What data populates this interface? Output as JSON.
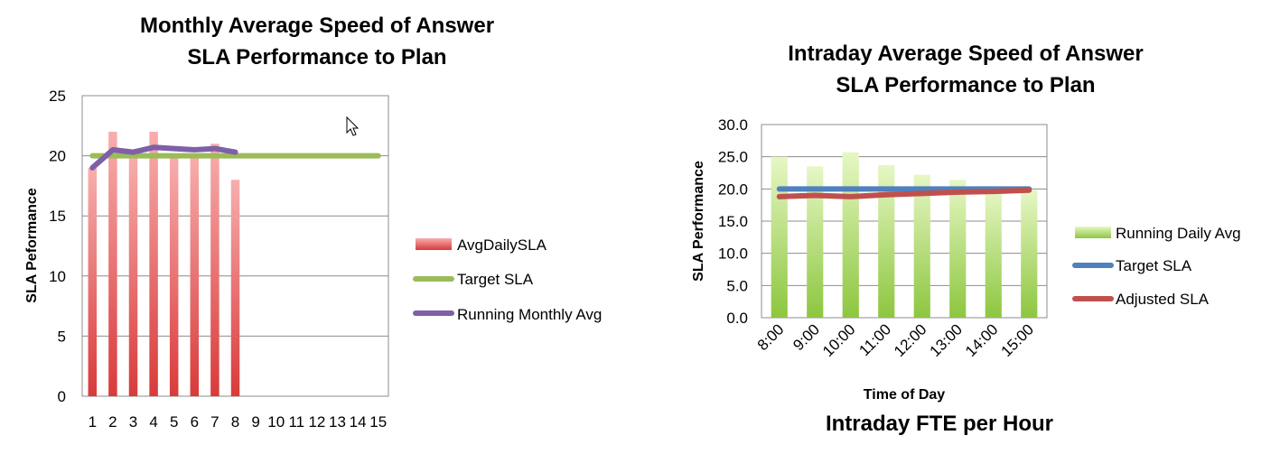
{
  "chart_data": [
    {
      "type": "bar",
      "title": "Monthly Average Speed of Answer SLA Performance to Plan",
      "title_lines": [
        "Monthly Average Speed of Answer",
        "SLA Performance to Plan"
      ],
      "xlabel": "",
      "ylabel": "SLA Peformance",
      "categories": [
        "1",
        "2",
        "3",
        "4",
        "5",
        "6",
        "7",
        "8",
        "9",
        "10",
        "11",
        "12",
        "13",
        "14",
        "15"
      ],
      "ylim": [
        0,
        25
      ],
      "yticks": [
        "0",
        "5",
        "10",
        "15",
        "20",
        "25"
      ],
      "series": [
        {
          "name": "AvgDailySLA",
          "kind": "bar",
          "color": "#e04848",
          "values": [
            19,
            22,
            20,
            22,
            20,
            20,
            21,
            18,
            null,
            null,
            null,
            null,
            null,
            null,
            null
          ]
        },
        {
          "name": "Target SLA",
          "kind": "line",
          "color": "#9bbb59",
          "values": [
            20,
            20,
            20,
            20,
            20,
            20,
            20,
            20,
            20,
            20,
            20,
            20,
            20,
            20,
            20
          ]
        },
        {
          "name": "Running Monthly Avg",
          "kind": "line",
          "color": "#7f5fa8",
          "values": [
            19,
            20.5,
            20.3,
            20.7,
            20.6,
            20.5,
            20.6,
            20.3,
            null,
            null,
            null,
            null,
            null,
            null,
            null
          ]
        }
      ],
      "legend": "right"
    },
    {
      "type": "bar",
      "title": "Intraday Average Speed of Answer SLA Performance to Plan",
      "title_lines": [
        "Intraday Average Speed of Answer",
        "SLA Performance to Plan"
      ],
      "xlabel": "Time of Day",
      "ylabel": "SLA Performance",
      "caption": "Intraday FTE per Hour",
      "categories": [
        "8:00",
        "9:00",
        "10:00",
        "11:00",
        "12:00",
        "13:00",
        "14:00",
        "15:00"
      ],
      "ylim": [
        0,
        30
      ],
      "yticks": [
        "0.0",
        "5.0",
        "10.0",
        "15.0",
        "20.0",
        "25.0",
        "30.0"
      ],
      "series": [
        {
          "name": "Running Daily Avg",
          "kind": "bar",
          "color": "#92c83e",
          "values": [
            25,
            23.5,
            25.7,
            23.7,
            22.2,
            21.4,
            19.8,
            19.8
          ]
        },
        {
          "name": "Target SLA",
          "kind": "line",
          "color": "#4f81bd",
          "values": [
            20,
            20,
            20,
            20,
            20,
            20,
            20,
            20
          ]
        },
        {
          "name": "Adjusted SLA",
          "kind": "line",
          "color": "#c0504d",
          "values": [
            18.8,
            19.0,
            18.8,
            19.1,
            19.3,
            19.5,
            19.6,
            19.8
          ]
        }
      ],
      "legend": "right"
    }
  ]
}
